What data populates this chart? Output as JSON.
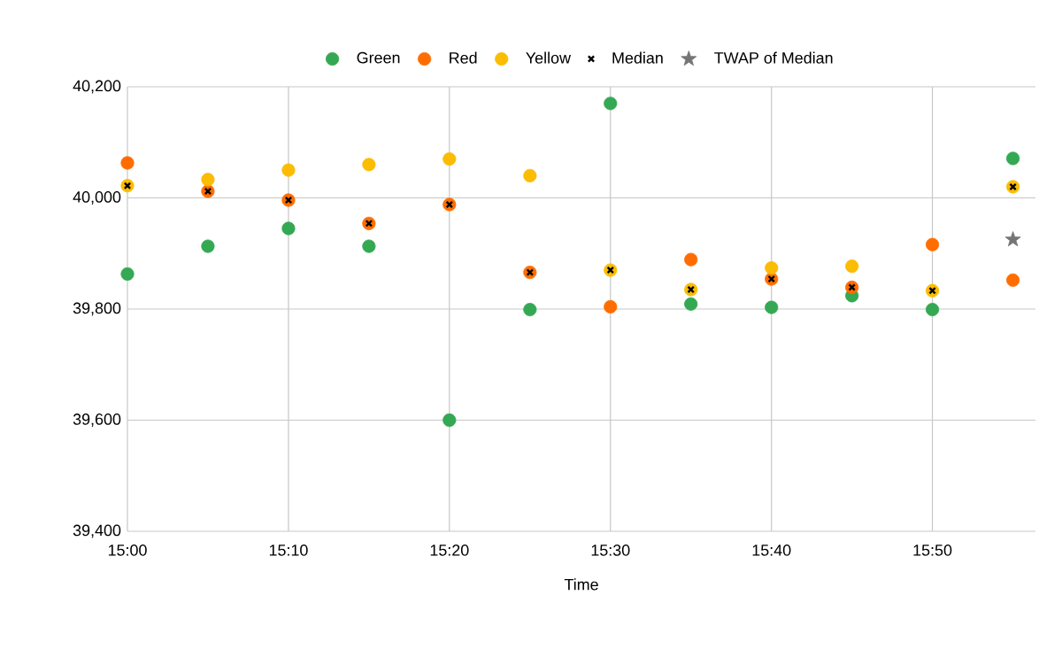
{
  "chart_data": {
    "type": "scatter",
    "xlabel": "Time",
    "x": [
      15,
      15.0833,
      15.1667,
      15.25,
      15.3333,
      15.4167,
      15.5,
      15.5833,
      15.6667,
      15.75,
      15.8333,
      15.9167
    ],
    "series": [
      {
        "name": "Green",
        "color": "#34a853",
        "marker": "circle",
        "values": [
          39863,
          39913,
          39945,
          39913,
          39600,
          39799,
          40170,
          39809,
          39803,
          39824,
          39799,
          40071
        ]
      },
      {
        "name": "Red",
        "color": "#ff6d01",
        "marker": "circle",
        "values": [
          40063,
          40012,
          39996,
          39954,
          39988,
          39866,
          39804,
          39889,
          39854,
          39839,
          39916,
          39852
        ]
      },
      {
        "name": "Yellow",
        "color": "#fbbc04",
        "marker": "circle",
        "values": [
          40022,
          40033,
          40050,
          40060,
          40070,
          40040,
          39870,
          39835,
          39874,
          39877,
          39833,
          40020
        ]
      },
      {
        "name": "Median",
        "color": "#000000",
        "marker": "cross",
        "values": [
          40022,
          40012,
          39996,
          39954,
          39988,
          39866,
          39870,
          39835,
          39854,
          39839,
          39833,
          40020
        ]
      },
      {
        "name": "TWAP of Median",
        "color": "#757575",
        "marker": "star",
        "x": [
          15.9167
        ],
        "values": [
          39925
        ]
      }
    ],
    "xlim": [
      15,
      15.94
    ],
    "ylim": [
      39400,
      40200
    ],
    "xticks": [
      {
        "value": 15,
        "label": "15:00"
      },
      {
        "value": 15.1667,
        "label": "15:10"
      },
      {
        "value": 15.3333,
        "label": "15:20"
      },
      {
        "value": 15.5,
        "label": "15:30"
      },
      {
        "value": 15.6667,
        "label": "15:40"
      },
      {
        "value": 15.8333,
        "label": "15:50"
      }
    ],
    "yticks": [
      {
        "value": 39400,
        "label": "39,400"
      },
      {
        "value": 39600,
        "label": "39,600"
      },
      {
        "value": 39800,
        "label": "39,800"
      },
      {
        "value": 40000,
        "label": "40,000"
      },
      {
        "value": 40200,
        "label": "40,200"
      }
    ],
    "grid": true,
    "legend": "top"
  }
}
